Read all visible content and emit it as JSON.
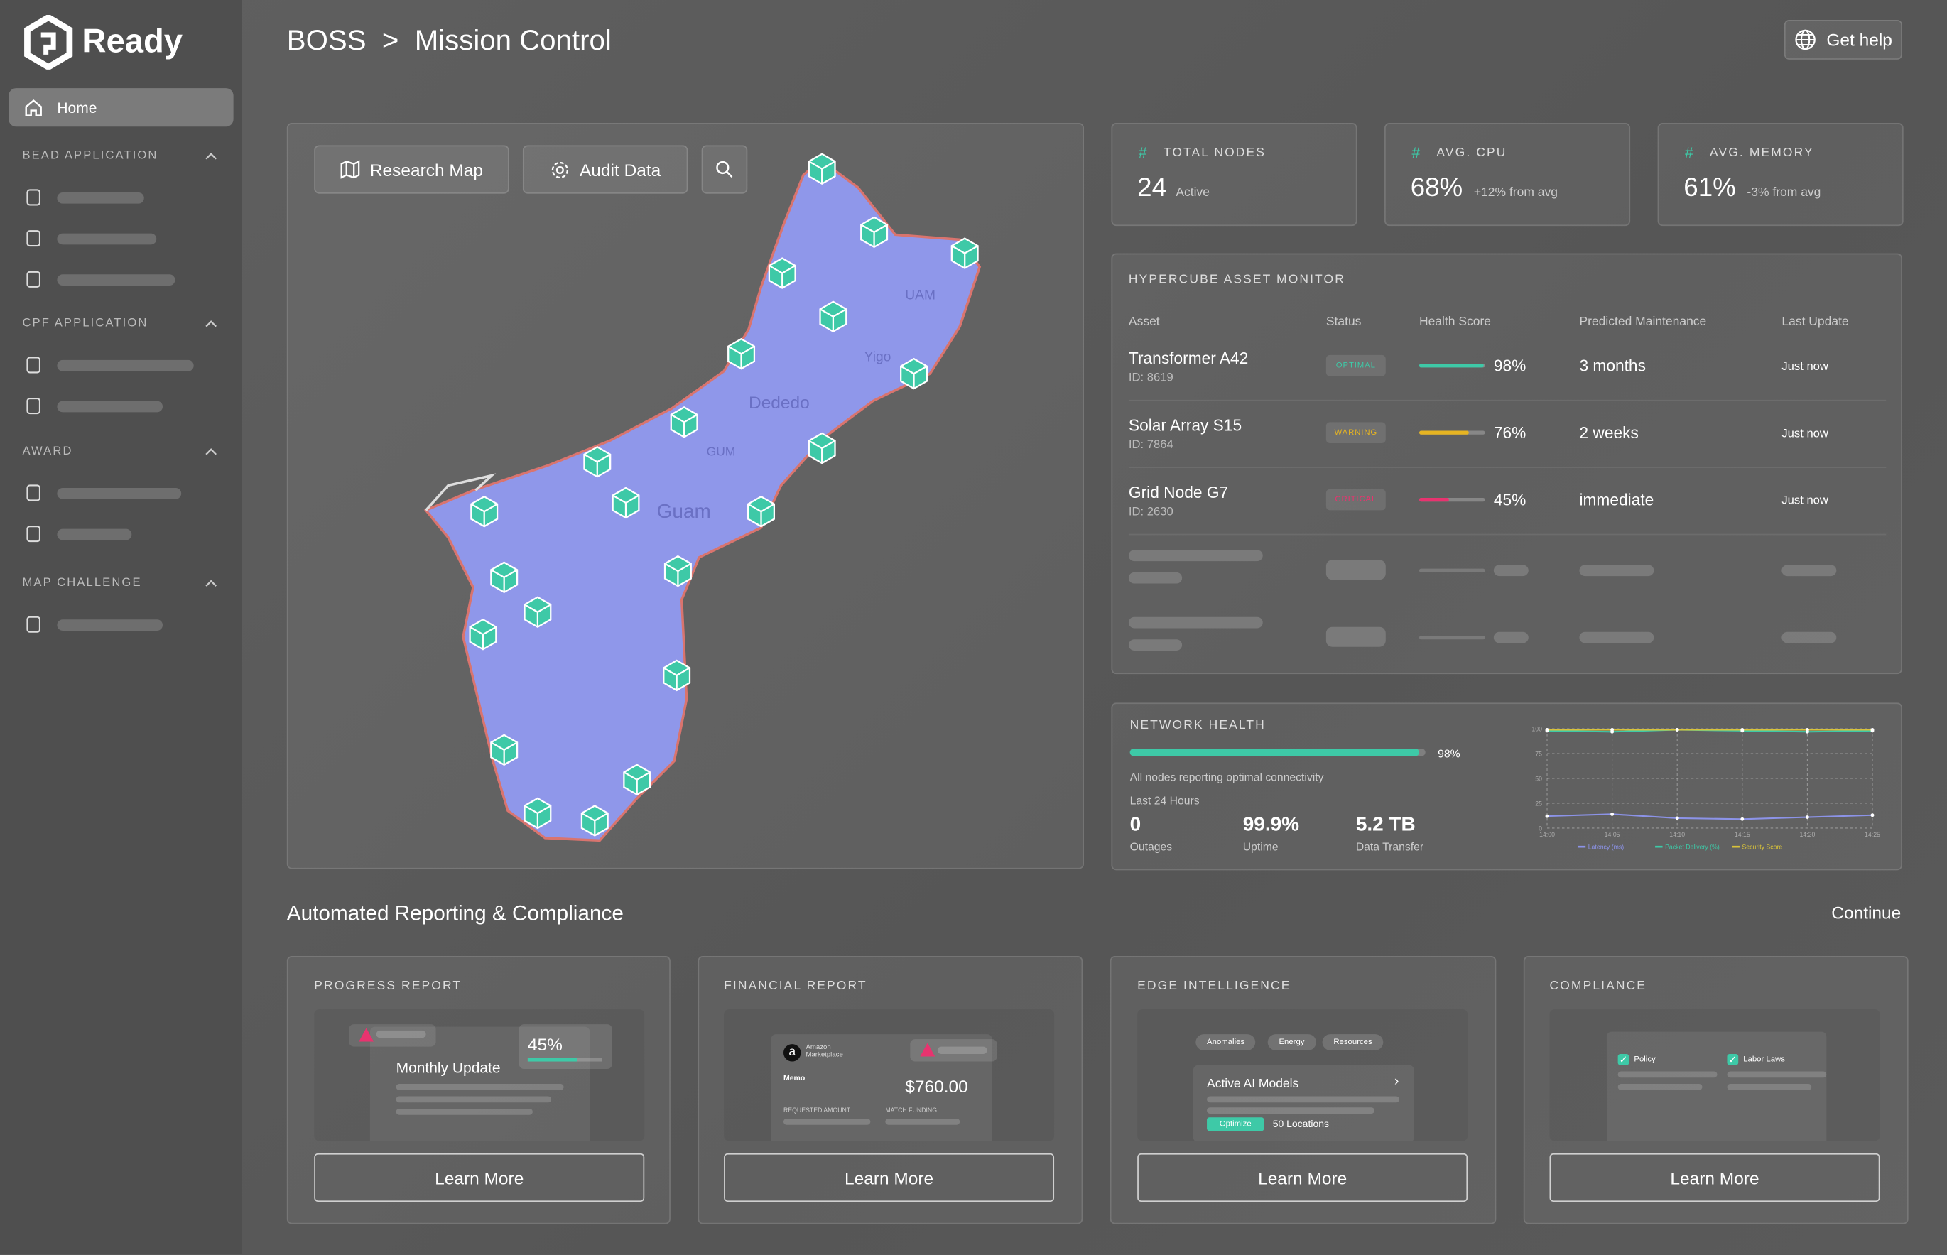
{
  "sidebar": {
    "brand": "Ready",
    "home": "Home",
    "sections": [
      "BEAD APPLICATION",
      "CPF APPLICATION",
      "AWARD",
      "MAP CHALLENGE"
    ]
  },
  "header": {
    "crumb": "BOSS",
    "separator": ">",
    "title": "Mission Control",
    "help": "Get help"
  },
  "map": {
    "buttons": [
      "Research Map",
      "Audit Data"
    ],
    "labels": [
      "UAM",
      "Yigo",
      "Dededo",
      "GUM",
      "Guam"
    ]
  },
  "stats": [
    {
      "label": "TOTAL NODES",
      "value": "24",
      "note": "Active"
    },
    {
      "label": "AVG. CPU",
      "value": "68%",
      "note": "+12% from avg"
    },
    {
      "label": "AVG. MEMORY",
      "value": "61%",
      "note": "-3% from avg"
    }
  ],
  "table": {
    "title": "HYPERCUBE ASSET MONITOR",
    "headers": [
      "Asset",
      "Status",
      "Health Score",
      "Predicted Maintenance",
      "Last Update"
    ],
    "rows": [
      {
        "asset": "Transformer A42",
        "id": "ID: 8619",
        "status": "OPTIMAL",
        "health": {
          "value": 98,
          "label": "98%"
        },
        "maintenance": "3 months",
        "update": "Just now"
      },
      {
        "asset": "Solar Array S15",
        "id": "ID: 7864",
        "status": "WARNING",
        "health": {
          "value": 76,
          "label": "76%"
        },
        "maintenance": "2 weeks",
        "update": "Just now"
      },
      {
        "asset": "Grid Node G7",
        "id": "ID: 2630",
        "status": "CRITICAL",
        "health": {
          "value": 45,
          "label": "45%"
        },
        "maintenance": "immediate",
        "update": "Just now"
      }
    ]
  },
  "network_health": {
    "title": "NETWORK HEALTH",
    "bar": {
      "value": 98,
      "label": "98%"
    },
    "note": "All nodes reporting optimal connectivity",
    "period": "Last 24 Hours",
    "metrics": [
      {
        "value": "0",
        "label": "Outages"
      },
      {
        "value": "99.9%",
        "label": "Uptime"
      },
      {
        "value": "5.2 TB",
        "label": "Data Transfer"
      }
    ],
    "chart": {
      "type": "line",
      "categories": [
        "14:00",
        "14:05",
        "14:10",
        "14:15",
        "14:20",
        "14:25"
      ],
      "ylim": [
        0,
        100
      ],
      "yticks": [
        0,
        25,
        50,
        75,
        100
      ],
      "series": [
        {
          "name": "Latency (ms)",
          "color": "#8c93e8",
          "values": [
            12,
            14,
            10,
            9,
            11,
            13
          ]
        },
        {
          "name": "Packet Delivery (%)",
          "color": "#3ec9a7",
          "values": [
            98,
            97,
            99,
            98,
            97,
            98
          ]
        },
        {
          "name": "Security Score",
          "color": "#d8c23a",
          "values": [
            99,
            99,
            99,
            99,
            99,
            99
          ]
        }
      ]
    }
  },
  "reporting": {
    "title": "Automated Reporting & Compliance",
    "continue": "Continue",
    "learn_more": "Learn More",
    "cards": [
      {
        "title": "PROGRESS REPORT",
        "heading": "Monthly Update",
        "percent": "45%"
      },
      {
        "title": "FINANCIAL REPORT",
        "vendor": "Amazon Marketplace",
        "memo": "Memo",
        "amount": "$760.00",
        "requested": "REQUESTED AMOUNT:",
        "match": "MATCH FUNDING:"
      },
      {
        "title": "EDGE INTELLIGENCE",
        "tags": [
          "Anomalies",
          "Energy",
          "Resources"
        ],
        "heading": "Active AI Models",
        "badge": "Optimize",
        "locations": "50 Locations"
      },
      {
        "title": "COMPLIANCE",
        "items": [
          "Policy",
          "Labor Laws"
        ]
      }
    ]
  }
}
